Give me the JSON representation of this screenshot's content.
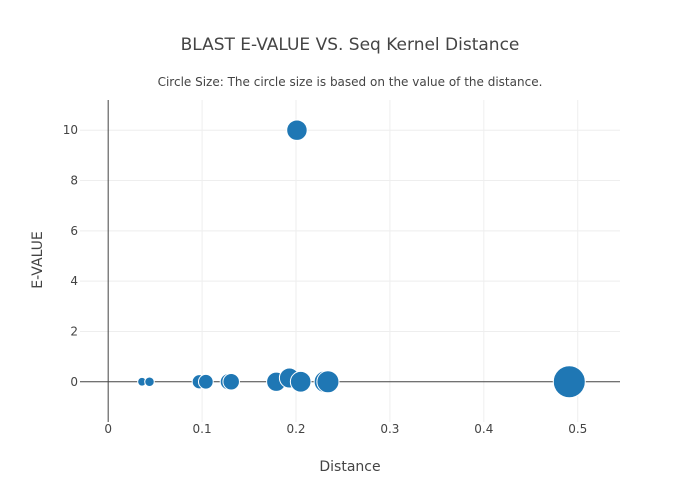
{
  "chart_data": {
    "type": "scatter",
    "title": "BLAST E-VALUE VS. Seq Kernel Distance",
    "subtitle": "Circle Size: The circle size is based on the value of the distance.",
    "xlabel": "Distance",
    "ylabel": "E-VALUE",
    "xlim": [
      -0.03,
      0.545
    ],
    "ylim": [
      -1.6,
      11.2
    ],
    "x_ticks": [
      0,
      0.1,
      0.2,
      0.3,
      0.4,
      0.5
    ],
    "x_tick_labels": [
      "0",
      "0.1",
      "0.2",
      "0.3",
      "0.4",
      "0.5"
    ],
    "y_ticks": [
      0,
      2,
      4,
      6,
      8,
      10
    ],
    "y_tick_labels": [
      "0",
      "2",
      "4",
      "6",
      "8",
      "10"
    ],
    "grid": true,
    "marker_color": "#1f77b4",
    "size_variable": "distance",
    "points": [
      {
        "x": 0.036,
        "y": 0
      },
      {
        "x": 0.044,
        "y": 0
      },
      {
        "x": 0.097,
        "y": 0
      },
      {
        "x": 0.104,
        "y": 0
      },
      {
        "x": 0.128,
        "y": 0
      },
      {
        "x": 0.131,
        "y": 0
      },
      {
        "x": 0.179,
        "y": 0
      },
      {
        "x": 0.193,
        "y": 0.15
      },
      {
        "x": 0.205,
        "y": 0
      },
      {
        "x": 0.231,
        "y": 0
      },
      {
        "x": 0.234,
        "y": 0
      },
      {
        "x": 0.201,
        "y": 10
      },
      {
        "x": 0.491,
        "y": 0
      }
    ]
  }
}
